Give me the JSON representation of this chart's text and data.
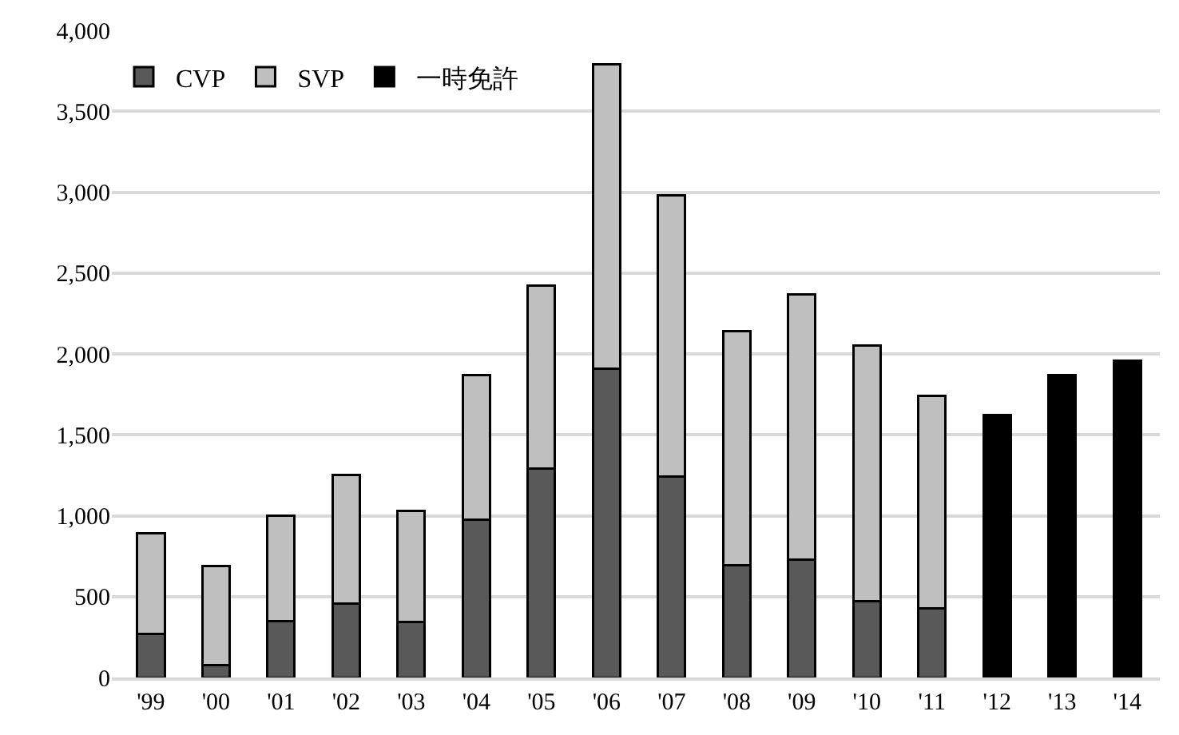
{
  "chart_data": {
    "type": "bar",
    "stacked": true,
    "categories": [
      "'99",
      "'00",
      "'01",
      "'02",
      "'03",
      "'04",
      "'05",
      "'06",
      "'07",
      "'08",
      "'09",
      "'10",
      "'11",
      "'12",
      "'13",
      "'14"
    ],
    "series": [
      {
        "name": "CVP",
        "color": "#595959",
        "values": [
          270,
          75,
          350,
          455,
          345,
          975,
          1290,
          1910,
          1240,
          695,
          730,
          470,
          425,
          null,
          null,
          null
        ]
      },
      {
        "name": "SVP",
        "color": "#bfbfbf",
        "values": [
          620,
          615,
          650,
          795,
          685,
          895,
          1130,
          1880,
          1740,
          1445,
          1640,
          1580,
          1315,
          null,
          null,
          null
        ]
      },
      {
        "name": "一時免許",
        "color": "#000000",
        "values": [
          null,
          null,
          null,
          null,
          null,
          null,
          null,
          null,
          null,
          null,
          null,
          null,
          null,
          1620,
          1870,
          1960
        ]
      }
    ],
    "ylim": [
      0,
      4000
    ],
    "yticks": [
      {
        "value": 0,
        "label": "0"
      },
      {
        "value": 500,
        "label": "500"
      },
      {
        "value": 1000,
        "label": "1,000"
      },
      {
        "value": 1500,
        "label": "1,500"
      },
      {
        "value": 2000,
        "label": "2,000"
      },
      {
        "value": 2500,
        "label": "2,500"
      },
      {
        "value": 3000,
        "label": "3,000"
      },
      {
        "value": 3500,
        "label": "3,500"
      },
      {
        "value": 4000,
        "label": "4,000"
      }
    ],
    "grid": "y",
    "legend": "top"
  }
}
